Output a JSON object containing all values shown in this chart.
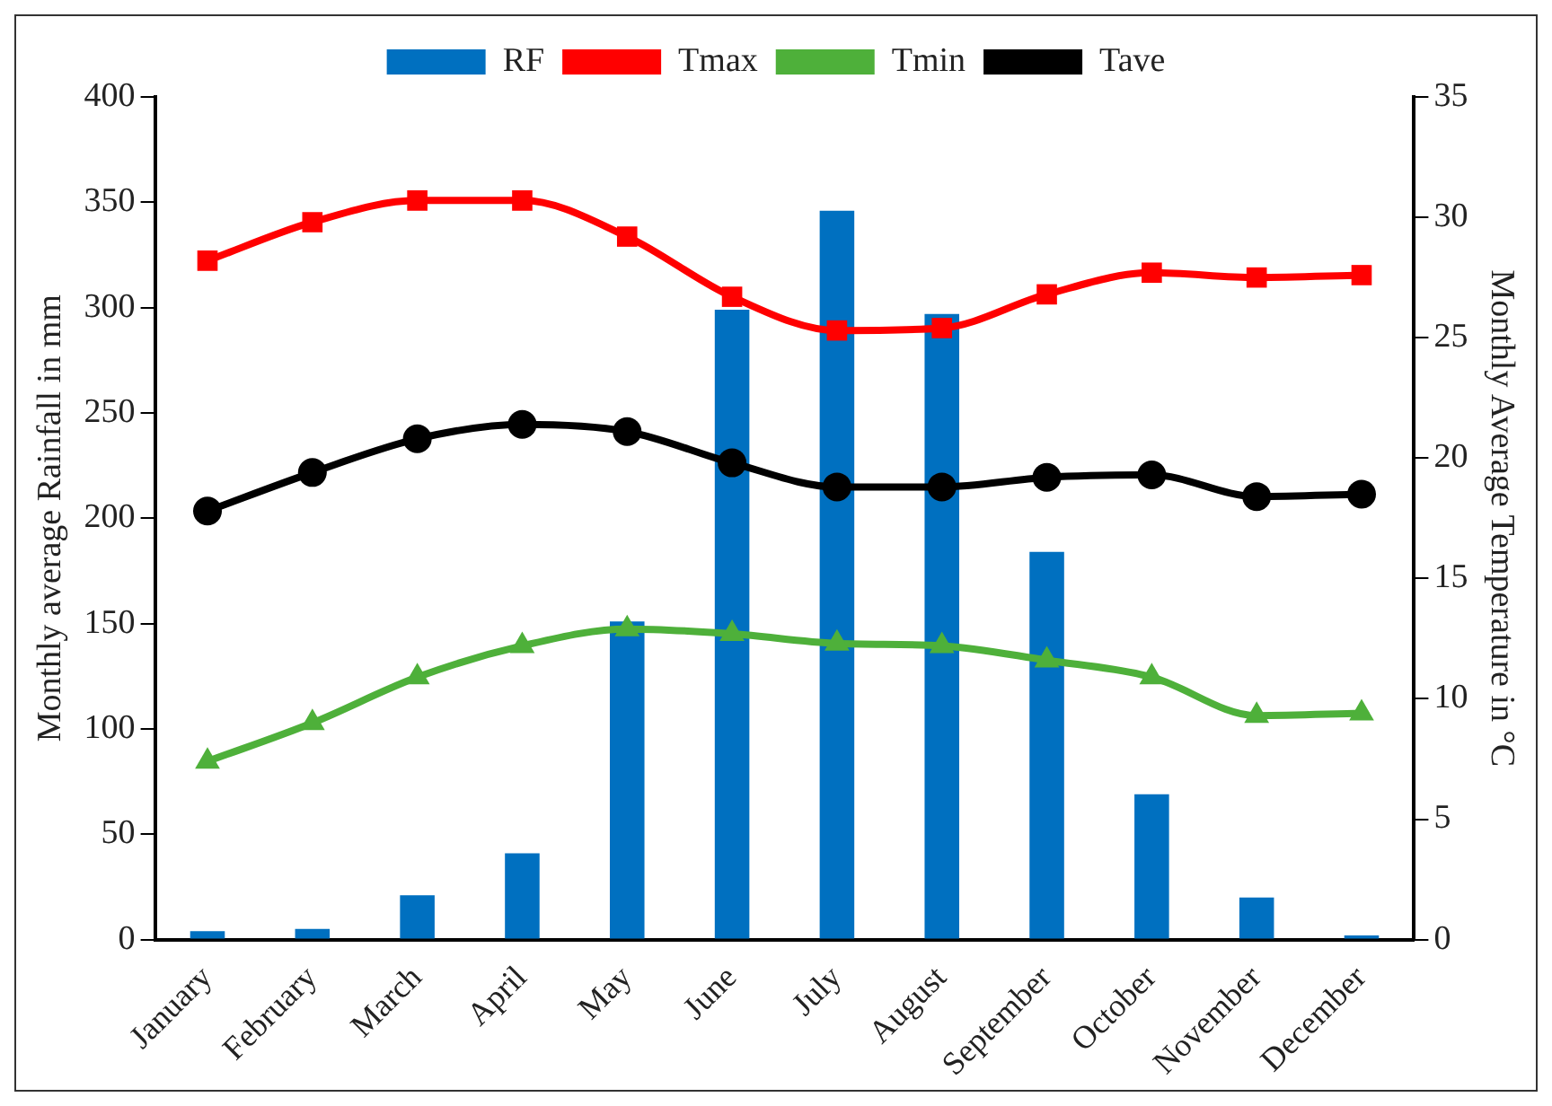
{
  "chart_data": {
    "type": "bar",
    "categories": [
      "January",
      "February",
      "March",
      "April",
      "May",
      "June",
      "July",
      "August",
      "September",
      "October",
      "November",
      "December"
    ],
    "ylabel": "Monthly average Rainfall in mm",
    "y2label": "Monthly Average Temperature in °C",
    "ylim": [
      0,
      400
    ],
    "yticks": [
      0,
      50,
      100,
      150,
      200,
      250,
      300,
      350,
      400
    ],
    "y2lim": [
      0,
      35
    ],
    "y2ticks": [
      0,
      5,
      10,
      15,
      20,
      25,
      30,
      35
    ],
    "grid": false,
    "legend": "top",
    "series": [
      {
        "name": "RF",
        "color": "#0070c0",
        "values": [
          4,
          5,
          21,
          41,
          151,
          299,
          346,
          297,
          184,
          69,
          20,
          2
        ]
      },
      {
        "name": "Tmax",
        "type": "line",
        "axis": "y2",
        "marker": "square",
        "color": "#ff0000",
        "values": [
          28.2,
          29.8,
          30.7,
          30.7,
          29.2,
          26.7,
          25.3,
          25.4,
          26.8,
          27.7,
          27.5,
          27.6
        ]
      },
      {
        "name": "Tmin",
        "type": "line",
        "axis": "y2",
        "marker": "triangle",
        "color": "#4eb03a",
        "values": [
          7.4,
          9.0,
          10.9,
          12.2,
          12.9,
          12.7,
          12.3,
          12.2,
          11.6,
          10.9,
          9.3,
          9.4
        ]
      },
      {
        "name": "Tave",
        "type": "line",
        "axis": "y2",
        "marker": "circle",
        "color": "#000000",
        "values": [
          17.8,
          19.4,
          20.8,
          21.4,
          21.1,
          19.8,
          18.8,
          18.8,
          19.2,
          19.3,
          18.4,
          18.5
        ]
      }
    ]
  }
}
